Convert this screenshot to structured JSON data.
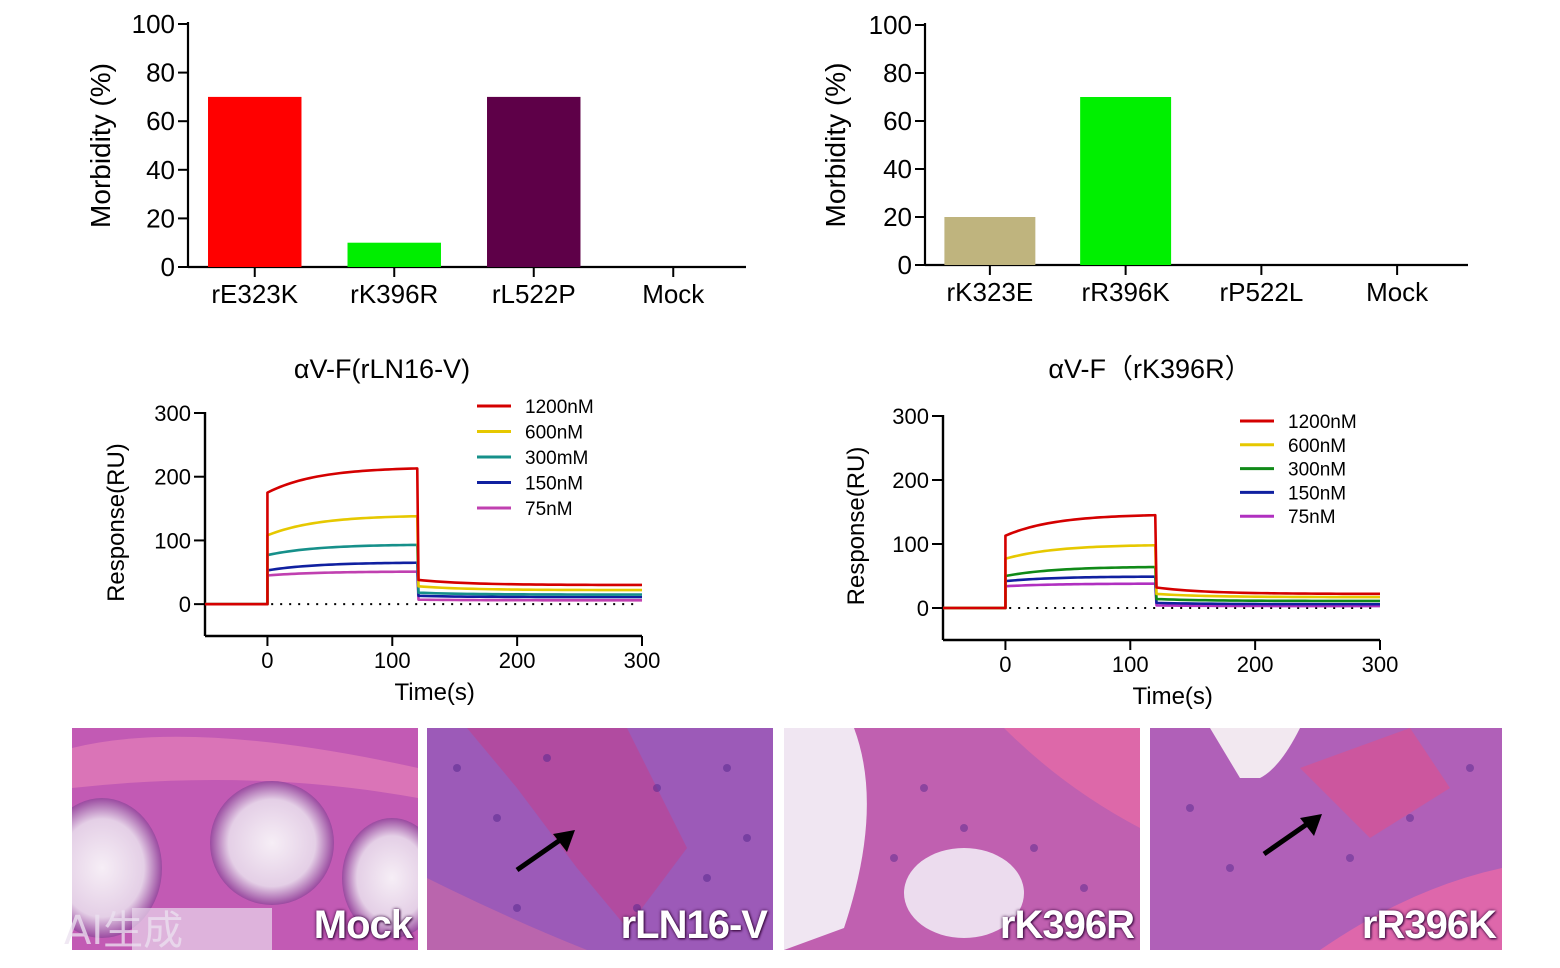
{
  "chart_data": [
    {
      "id": "bar-left",
      "type": "bar",
      "title": "",
      "xlabel": "",
      "ylabel": "Morbidity (%)",
      "ylim": [
        0,
        100
      ],
      "yticks": [
        0,
        20,
        40,
        60,
        80,
        100
      ],
      "categories": [
        "rE323K",
        "rK396R",
        "rL522P",
        "Mock"
      ],
      "values": [
        70,
        10,
        70,
        0
      ],
      "colors": [
        "#ff0000",
        "#00ee00",
        "#5e0048",
        "#ffffff"
      ]
    },
    {
      "id": "bar-right",
      "type": "bar",
      "title": "",
      "xlabel": "",
      "ylabel": "Morbidity (%)",
      "ylim": [
        0,
        100
      ],
      "yticks": [
        0,
        20,
        40,
        60,
        80,
        100
      ],
      "categories": [
        "rK323E",
        "rR396K",
        "rP522L",
        "Mock"
      ],
      "values": [
        20,
        70,
        0,
        0
      ],
      "colors": [
        "#bfb47e",
        "#00f000",
        "#ffffff",
        "#ffffff"
      ]
    },
    {
      "id": "spr-left",
      "type": "line",
      "title": "αV-F(rLN16-V)",
      "xlabel": "Time(s)",
      "ylabel": "Response(RU)",
      "xlim": [
        -50,
        300
      ],
      "ylim": [
        -50,
        300
      ],
      "xticks": [
        0,
        100,
        200,
        300
      ],
      "yticks": [
        0,
        100,
        200,
        300
      ],
      "legend_position": "top-right",
      "baseline": "dotted-zero",
      "series": [
        {
          "name": "1200nM",
          "color": "#d40000",
          "jump": 175,
          "plateau": 213,
          "dissoc_start": 38,
          "dissoc_end": 30
        },
        {
          "name": "600nM",
          "color": "#e6c800",
          "jump": 108,
          "plateau": 138,
          "dissoc_start": 28,
          "dissoc_end": 22
        },
        {
          "name": "300mM",
          "color": "#16908a",
          "jump": 77,
          "plateau": 93,
          "dissoc_start": 18,
          "dissoc_end": 15
        },
        {
          "name": "150nM",
          "color": "#1020a0",
          "jump": 53,
          "plateau": 65,
          "dissoc_start": 13,
          "dissoc_end": 11
        },
        {
          "name": "75nM",
          "color": "#c040b0",
          "jump": 45,
          "plateau": 51,
          "dissoc_start": 7,
          "dissoc_end": 6
        }
      ]
    },
    {
      "id": "spr-right",
      "type": "line",
      "title": "αV-F（rK396R）",
      "xlabel": "Time(s)",
      "ylabel": "Response(RU)",
      "xlim": [
        -50,
        300
      ],
      "ylim": [
        -50,
        300
      ],
      "xticks": [
        0,
        100,
        200,
        300
      ],
      "yticks": [
        0,
        100,
        200,
        300
      ],
      "legend_position": "top-right",
      "baseline": "dotted-zero",
      "series": [
        {
          "name": "1200nM",
          "color": "#d40000",
          "jump": 113,
          "plateau": 145,
          "dissoc_start": 32,
          "dissoc_end": 22
        },
        {
          "name": "600nM",
          "color": "#e6c800",
          "jump": 77,
          "plateau": 98,
          "dissoc_start": 22,
          "dissoc_end": 17
        },
        {
          "name": "300nM",
          "color": "#108a18",
          "jump": 50,
          "plateau": 64,
          "dissoc_start": 14,
          "dissoc_end": 11
        },
        {
          "name": "150nM",
          "color": "#1020a0",
          "jump": 42,
          "plateau": 49,
          "dissoc_start": 8,
          "dissoc_end": 6
        },
        {
          "name": "75nM",
          "color": "#b030c0",
          "jump": 34,
          "plateau": 38,
          "dissoc_start": 4,
          "dissoc_end": 3
        }
      ]
    }
  ],
  "histology": [
    {
      "label": "Mock",
      "arrow": false
    },
    {
      "label": "rLN16-V",
      "arrow": true
    },
    {
      "label": "rK396R",
      "arrow": false
    },
    {
      "label": "rR396K",
      "arrow": true
    }
  ],
  "watermark": {
    "text": "AI生成"
  }
}
